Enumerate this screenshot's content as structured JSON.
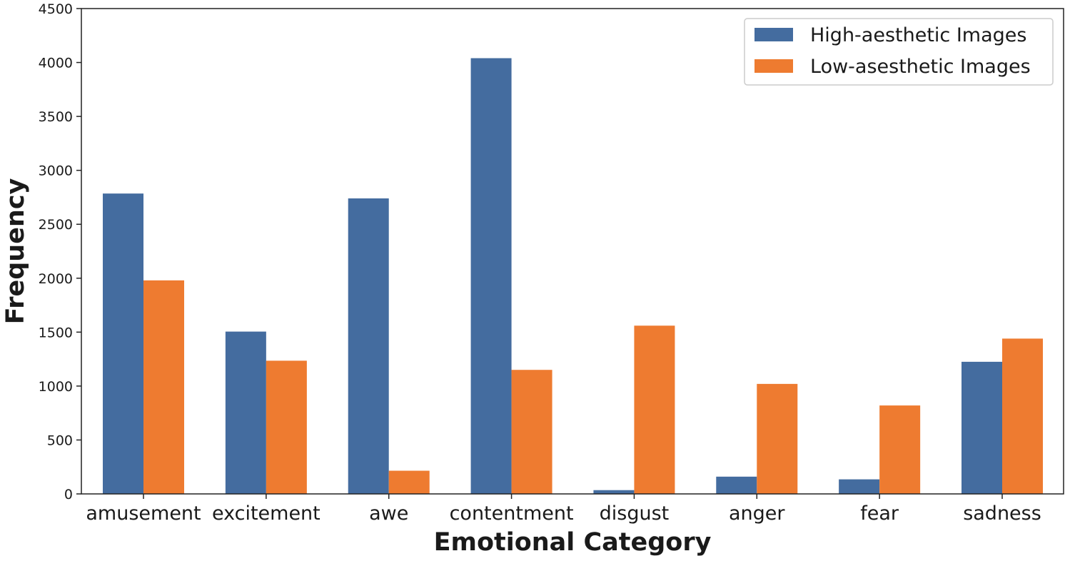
{
  "chart_data": {
    "type": "bar",
    "title": "",
    "xlabel": "Emotional Category",
    "ylabel": "Frequency",
    "categories": [
      "amusement",
      "excitement",
      "awe",
      "contentment",
      "disgust",
      "anger",
      "fear",
      "sadness"
    ],
    "series": [
      {
        "name": "High-aesthetic Images",
        "color": "#446c9f",
        "values": [
          2785,
          1505,
          2740,
          4040,
          35,
          160,
          135,
          1225
        ]
      },
      {
        "name": "Low-asesthetic Images",
        "color": "#ee7b30",
        "values": [
          1980,
          1235,
          215,
          1150,
          1560,
          1020,
          820,
          1440
        ]
      }
    ],
    "ylim": [
      0,
      4500
    ],
    "yticks": [
      0,
      500,
      1000,
      1500,
      2000,
      2500,
      3000,
      3500,
      4000,
      4500
    ],
    "grid": false,
    "legend_position": "top-right"
  }
}
